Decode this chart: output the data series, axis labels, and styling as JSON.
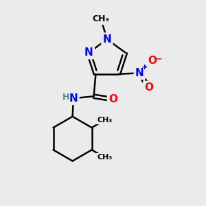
{
  "bg_color": "#ebebeb",
  "bond_color": "#000000",
  "bond_width": 1.8,
  "N_color": "#0000ff",
  "O_color": "#ff0000",
  "H_color": "#4a9090",
  "C_color": "#000000",
  "font_size_atom": 11,
  "font_size_small": 9,
  "figsize": [
    3.0,
    3.0
  ],
  "dpi": 100,
  "xlim": [
    0,
    10
  ],
  "ylim": [
    0,
    10
  ]
}
